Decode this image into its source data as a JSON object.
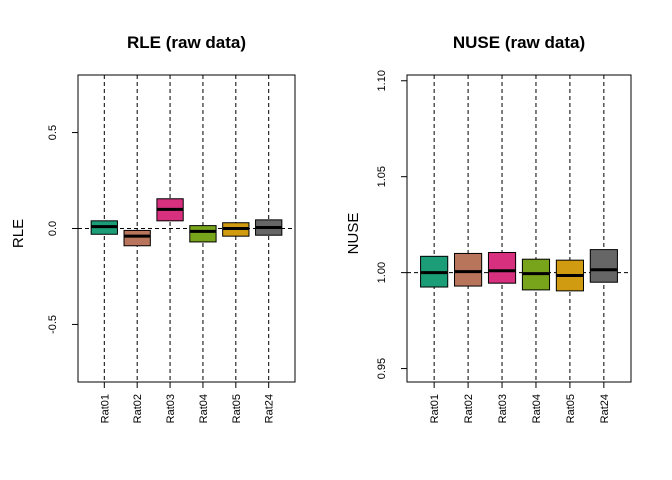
{
  "chart_data": [
    {
      "type": "boxplot",
      "title": "RLE (raw data)",
      "ylabel": "RLE",
      "xlabel": "",
      "categories": [
        "Rat01",
        "Rat02",
        "Rat03",
        "Rat04",
        "Rat05",
        "Rat24"
      ],
      "ylim": [
        -0.8,
        0.8
      ],
      "yticks": [
        -0.5,
        0.0,
        0.5
      ],
      "ytick_labels": [
        "-0.5",
        "0.0",
        "0.5"
      ],
      "reference_line": 0,
      "whiskers": "vertical dashed lines spanning full plot height",
      "boxes": [
        {
          "q1": -0.03,
          "median": 0.01,
          "q3": 0.04
        },
        {
          "q1": -0.09,
          "median": -0.04,
          "q3": -0.01
        },
        {
          "q1": 0.04,
          "median": 0.1,
          "q3": 0.155
        },
        {
          "q1": -0.07,
          "median": -0.015,
          "q3": 0.015
        },
        {
          "q1": -0.04,
          "median": 0.0,
          "q3": 0.03
        },
        {
          "q1": -0.035,
          "median": 0.005,
          "q3": 0.045
        }
      ],
      "colors": [
        "#1b9e77",
        "#b9745c",
        "#d6307f",
        "#78a41c",
        "#d19b11",
        "#666666"
      ]
    },
    {
      "type": "boxplot",
      "title": "NUSE (raw data)",
      "ylabel": "NUSE",
      "xlabel": "",
      "categories": [
        "Rat01",
        "Rat02",
        "Rat03",
        "Rat04",
        "Rat05",
        "Rat24"
      ],
      "ylim": [
        0.943,
        1.103
      ],
      "yticks": [
        0.95,
        1.0,
        1.05,
        1.1
      ],
      "ytick_labels": [
        "0.95",
        "1.00",
        "1.05",
        "1.10"
      ],
      "reference_line": 1.0,
      "whiskers": "vertical dashed lines spanning full plot height",
      "boxes": [
        {
          "q1": 0.9925,
          "median": 1.0,
          "q3": 1.0085
        },
        {
          "q1": 0.993,
          "median": 1.0005,
          "q3": 1.01
        },
        {
          "q1": 0.9945,
          "median": 1.001,
          "q3": 1.0105
        },
        {
          "q1": 0.991,
          "median": 0.9995,
          "q3": 1.007
        },
        {
          "q1": 0.9905,
          "median": 0.9985,
          "q3": 1.0065
        },
        {
          "q1": 0.995,
          "median": 1.0015,
          "q3": 1.012
        }
      ],
      "colors": [
        "#1b9e77",
        "#b9745c",
        "#d6307f",
        "#78a41c",
        "#d19b11",
        "#666666"
      ]
    }
  ]
}
